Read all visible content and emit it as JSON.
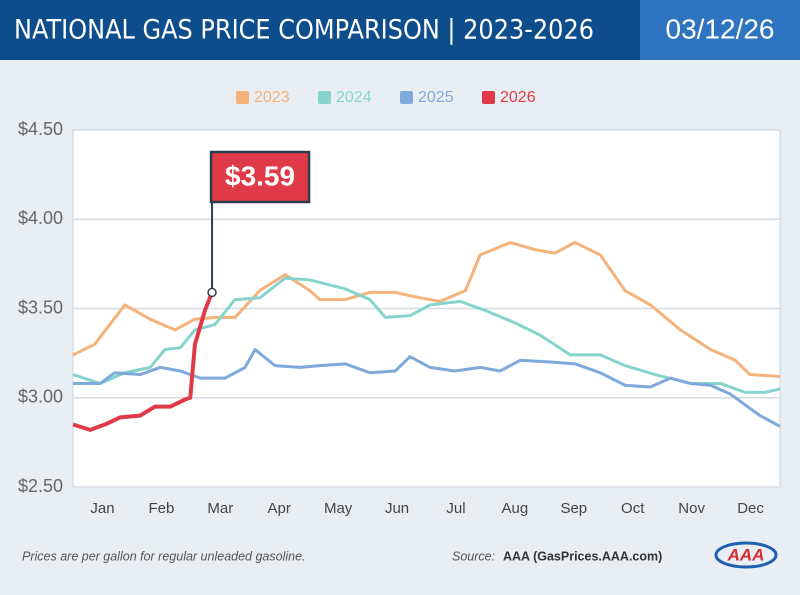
{
  "chart_data": {
    "type": "line",
    "title": "NATIONAL GAS PRICE COMPARISON | 2023-2026",
    "date": "03/12/26",
    "note": "Prices are per gallon for regular unleaded gasoline.",
    "source_label": "Source:",
    "source": "AAA (GasPrices.AAA.com)",
    "logo": "AAA",
    "xlim": [
      0,
      12
    ],
    "xticks": [
      {
        "value": 0.5,
        "label": "Jan"
      },
      {
        "value": 1.5,
        "label": "Feb"
      },
      {
        "value": 2.5,
        "label": "Mar"
      },
      {
        "value": 3.5,
        "label": "Apr"
      },
      {
        "value": 4.5,
        "label": "May"
      },
      {
        "value": 5.5,
        "label": "Jun"
      },
      {
        "value": 6.5,
        "label": "Jul"
      },
      {
        "value": 7.5,
        "label": "Aug"
      },
      {
        "value": 8.5,
        "label": "Sep"
      },
      {
        "value": 9.5,
        "label": "Oct"
      },
      {
        "value": 10.5,
        "label": "Nov"
      },
      {
        "value": 11.5,
        "label": "Dec"
      }
    ],
    "ylim": [
      2.5,
      4.5
    ],
    "yticks": [
      {
        "value": 2.5,
        "label": "$2.50"
      },
      {
        "value": 3.0,
        "label": "$3.00"
      },
      {
        "value": 3.5,
        "label": "$3.50"
      },
      {
        "value": 4.0,
        "label": "$4.00"
      },
      {
        "value": 4.5,
        "label": "$4.50"
      }
    ],
    "grid": true,
    "series": [
      {
        "name": "2023",
        "color": "#f5b27a",
        "x": [
          0,
          0.37,
          0.88,
          1.31,
          1.73,
          2.07,
          2.41,
          2.75,
          3.17,
          3.6,
          4.02,
          4.19,
          4.62,
          5.04,
          5.47,
          5.89,
          6.23,
          6.66,
          6.91,
          7.42,
          7.84,
          8.18,
          8.52,
          8.95,
          9.37,
          9.8,
          10.31,
          10.82,
          11.24,
          11.49,
          12
        ],
        "values": [
          3.24,
          3.3,
          3.52,
          3.44,
          3.38,
          3.44,
          3.45,
          3.45,
          3.6,
          3.69,
          3.6,
          3.55,
          3.55,
          3.59,
          3.59,
          3.56,
          3.54,
          3.6,
          3.8,
          3.87,
          3.83,
          3.81,
          3.87,
          3.8,
          3.6,
          3.52,
          3.38,
          3.27,
          3.21,
          3.13,
          3.12
        ]
      },
      {
        "name": "2024",
        "color": "#86d4cc",
        "x": [
          0,
          0.46,
          0.88,
          1.31,
          1.56,
          1.82,
          2.07,
          2.41,
          2.75,
          3.17,
          3.6,
          4.02,
          4.62,
          5.04,
          5.3,
          5.72,
          6.06,
          6.57,
          6.99,
          7.5,
          7.93,
          8.44,
          8.95,
          9.37,
          9.88,
          10.48,
          10.99,
          11.41,
          11.75,
          12
        ],
        "values": [
          3.13,
          3.08,
          3.14,
          3.17,
          3.27,
          3.28,
          3.38,
          3.41,
          3.55,
          3.56,
          3.67,
          3.66,
          3.61,
          3.55,
          3.45,
          3.46,
          3.52,
          3.54,
          3.49,
          3.42,
          3.35,
          3.24,
          3.24,
          3.18,
          3.13,
          3.08,
          3.08,
          3.03,
          3.03,
          3.05
        ]
      },
      {
        "name": "2025",
        "color": "#7ea9da",
        "x": [
          0,
          0.46,
          0.71,
          1.14,
          1.48,
          1.82,
          2.16,
          2.58,
          2.92,
          3.09,
          3.43,
          3.85,
          4.19,
          4.62,
          5.04,
          5.47,
          5.72,
          6.06,
          6.48,
          6.91,
          7.25,
          7.59,
          8.1,
          8.52,
          8.95,
          9.37,
          9.8,
          10.14,
          10.48,
          10.82,
          11.16,
          11.66,
          12
        ],
        "values": [
          3.08,
          3.08,
          3.14,
          3.13,
          3.17,
          3.15,
          3.11,
          3.11,
          3.17,
          3.27,
          3.18,
          3.17,
          3.18,
          3.19,
          3.14,
          3.15,
          3.23,
          3.17,
          3.15,
          3.17,
          3.15,
          3.21,
          3.2,
          3.19,
          3.14,
          3.07,
          3.06,
          3.11,
          3.08,
          3.07,
          3.02,
          2.9,
          2.84
        ]
      },
      {
        "name": "2026",
        "color": "#e03a48",
        "x": [
          0,
          0.29,
          0.54,
          0.8,
          1.14,
          1.39,
          1.65,
          1.9,
          1.99,
          2.07,
          2.24,
          2.36
        ],
        "values": [
          2.85,
          2.82,
          2.85,
          2.89,
          2.9,
          2.95,
          2.95,
          2.99,
          3.0,
          3.3,
          3.49,
          3.59
        ],
        "value_labels": [
          null,
          null,
          null,
          null,
          null,
          null,
          null,
          null,
          null,
          null,
          null,
          "$3.59"
        ]
      }
    ]
  }
}
